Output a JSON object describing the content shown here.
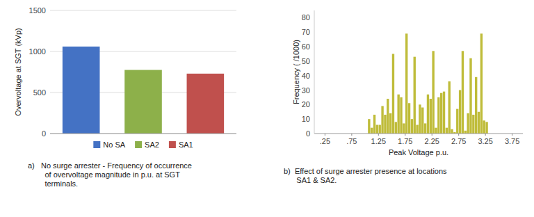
{
  "chart_data": [
    {
      "type": "bar",
      "categories": [
        "No SA",
        "SA2",
        "SA1"
      ],
      "values": [
        1060,
        775,
        730
      ],
      "colors": [
        "#4472C4",
        "#8DB04A",
        "#C0504D"
      ],
      "ylabel": "Overvoltage at SGT (kVp)",
      "ylim": [
        0,
        1500
      ],
      "yticks": [
        0,
        500,
        1000,
        1500
      ],
      "grid": true,
      "legend": "bottom",
      "tick_labels": "y",
      "annotations": [
        "a)   No surge arrester - Frequency of occurrence\n        of overvoltage magnitude in p.u. at SGT\n        terminals."
      ]
    },
    {
      "type": "histogram",
      "bins": [
        1.05,
        1.1,
        1.15,
        1.2,
        1.25,
        1.3,
        1.35,
        1.4,
        1.45,
        1.5,
        1.55,
        1.6,
        1.65,
        1.7,
        1.75,
        1.8,
        1.85,
        1.9,
        1.95,
        2,
        2.05,
        2.1,
        2.15,
        2.2,
        2.25,
        2.3,
        2.35,
        2.4,
        2.45,
        2.5,
        2.55,
        2.6,
        2.65,
        2.7,
        2.75,
        2.8,
        2.85,
        2.9,
        2.95,
        3,
        3.05,
        3.1,
        3.15,
        3.2,
        3.25,
        3.3
      ],
      "values": [
        10,
        4,
        13,
        6,
        6,
        19,
        13,
        24,
        14,
        55,
        8,
        27,
        25,
        7,
        69,
        21,
        10,
        53,
        6,
        20,
        18,
        7,
        27,
        24,
        57,
        4,
        25,
        28,
        29,
        4,
        36,
        3,
        1,
        17,
        30,
        57,
        2,
        14,
        52,
        13,
        39,
        15,
        69,
        9,
        8
      ],
      "color": "#BFBC3A",
      "xlabel": "Peak Voltage p.u.",
      "ylabel": "Frequency ( /1000)",
      "xlim": [
        0.05,
        3.95
      ],
      "ylim": [
        0,
        85
      ],
      "xticks": [
        {
          "value": 0.25,
          "label": ".25"
        },
        {
          "value": 0.75,
          "label": ".75"
        },
        1.25,
        1.75,
        2.25,
        2.75,
        3.25,
        3.75
      ],
      "yticks": [
        0,
        10,
        20,
        30,
        40,
        50,
        60,
        70,
        80
      ],
      "grid": false,
      "annotations": [
        "b)  Effect of surge arrester presence at locations\n      SA1 & SA2."
      ]
    }
  ]
}
